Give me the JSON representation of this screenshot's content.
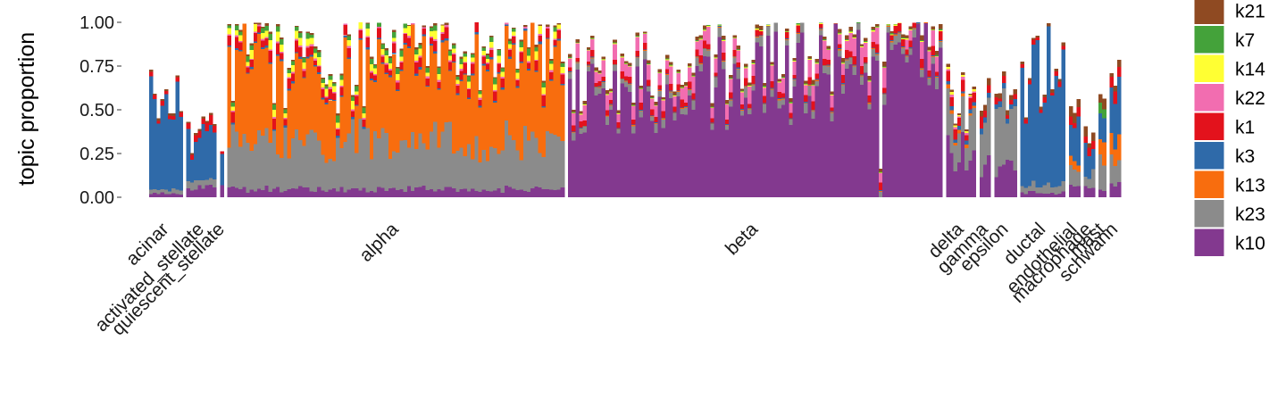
{
  "chart_data": {
    "type": "bar",
    "subtype": "stacked-structure-plot",
    "ylabel": "topic proportion",
    "ylim": [
      0,
      1
    ],
    "yticks": [
      "0.00",
      "0.25",
      "0.50",
      "0.75",
      "1.00"
    ],
    "grid": false,
    "legend_position": "right",
    "series": [
      {
        "name": "k10",
        "color": "#83398f"
      },
      {
        "name": "k23",
        "color": "#8b8b8b"
      },
      {
        "name": "k13",
        "color": "#f86d0e"
      },
      {
        "name": "k3",
        "color": "#2f6aa9"
      },
      {
        "name": "k1",
        "color": "#e3121c"
      },
      {
        "name": "k22",
        "color": "#f26db0"
      },
      {
        "name": "k14",
        "color": "#ffff33"
      },
      {
        "name": "k7",
        "color": "#44a23a"
      },
      {
        "name": "k21",
        "color": "#8f4a22"
      }
    ],
    "groups": [
      {
        "label": "acinar",
        "n": 9,
        "total": 0.55,
        "profile": {
          "k10": 0.04,
          "k23": 0.04,
          "k3": 0.86,
          "k1": 0.04,
          "k21": 0.02
        }
      },
      {
        "label": "activated_stellate",
        "n": 8,
        "total": 0.4,
        "profile": {
          "k10": 0.15,
          "k23": 0.12,
          "k3": 0.6,
          "k1": 0.1,
          "k21": 0.03
        }
      },
      {
        "label": "quiescent_stellate",
        "n": 1,
        "total": 0.4,
        "profile": {
          "k10": 0.15,
          "k3": 0.8,
          "k1": 0.05
        }
      },
      {
        "label": "alpha",
        "n": 90,
        "total": 0.96,
        "profile": {
          "k10": 0.05,
          "k23": 0.3,
          "k13": 0.5,
          "k3": 0.01,
          "k1": 0.05,
          "k22": 0.01,
          "k14": 0.04,
          "k7": 0.03,
          "k21": 0.01
        }
      },
      {
        "label": "beta",
        "n": 100,
        "total": 0.85,
        "profile": {
          "k10": 0.78,
          "k23": 0.05,
          "k13": 0.005,
          "k3": 0.005,
          "k1": 0.04,
          "k22": 0.09,
          "k14": 0.005,
          "k7": 0.005,
          "k21": 0.02
        }
      },
      {
        "label": "delta",
        "n": 8,
        "total": 0.65,
        "profile": {
          "k10": 0.45,
          "k23": 0.35,
          "k13": 0.03,
          "k3": 0.03,
          "k1": 0.08,
          "k22": 0.02,
          "k14": 0.02,
          "k21": 0.02
        }
      },
      {
        "label": "gamma",
        "n": 3,
        "total": 0.6,
        "profile": {
          "k10": 0.3,
          "k23": 0.5,
          "k3": 0.05,
          "k1": 0.1,
          "k21": 0.05
        }
      },
      {
        "label": "epsilon",
        "n": 6,
        "total": 0.6,
        "profile": {
          "k10": 0.3,
          "k23": 0.55,
          "k3": 0.05,
          "k1": 0.05,
          "k21": 0.05
        }
      },
      {
        "label": "ductal",
        "n": 12,
        "total": 0.75,
        "profile": {
          "k10": 0.04,
          "k23": 0.06,
          "k3": 0.85,
          "k1": 0.03,
          "k21": 0.02
        }
      },
      {
        "label": "endothelial",
        "n": 3,
        "total": 0.55,
        "profile": {
          "k10": 0.1,
          "k23": 0.2,
          "k13": 0.1,
          "k3": 0.4,
          "k1": 0.1,
          "k21": 0.1
        }
      },
      {
        "label": "macrophage",
        "n": 3,
        "total": 0.45,
        "profile": {
          "k10": 0.1,
          "k23": 0.2,
          "k3": 0.5,
          "k1": 0.1,
          "k21": 0.1
        }
      },
      {
        "label": "mast",
        "n": 2,
        "total": 0.6,
        "profile": {
          "k10": 0.1,
          "k23": 0.3,
          "k13": 0.2,
          "k3": 0.2,
          "k7": 0.1,
          "k21": 0.1
        }
      },
      {
        "label": "schwann",
        "n": 3,
        "total": 0.7,
        "profile": {
          "k10": 0.1,
          "k23": 0.2,
          "k13": 0.2,
          "k3": 0.35,
          "k1": 0.1,
          "k21": 0.05
        }
      }
    ]
  }
}
